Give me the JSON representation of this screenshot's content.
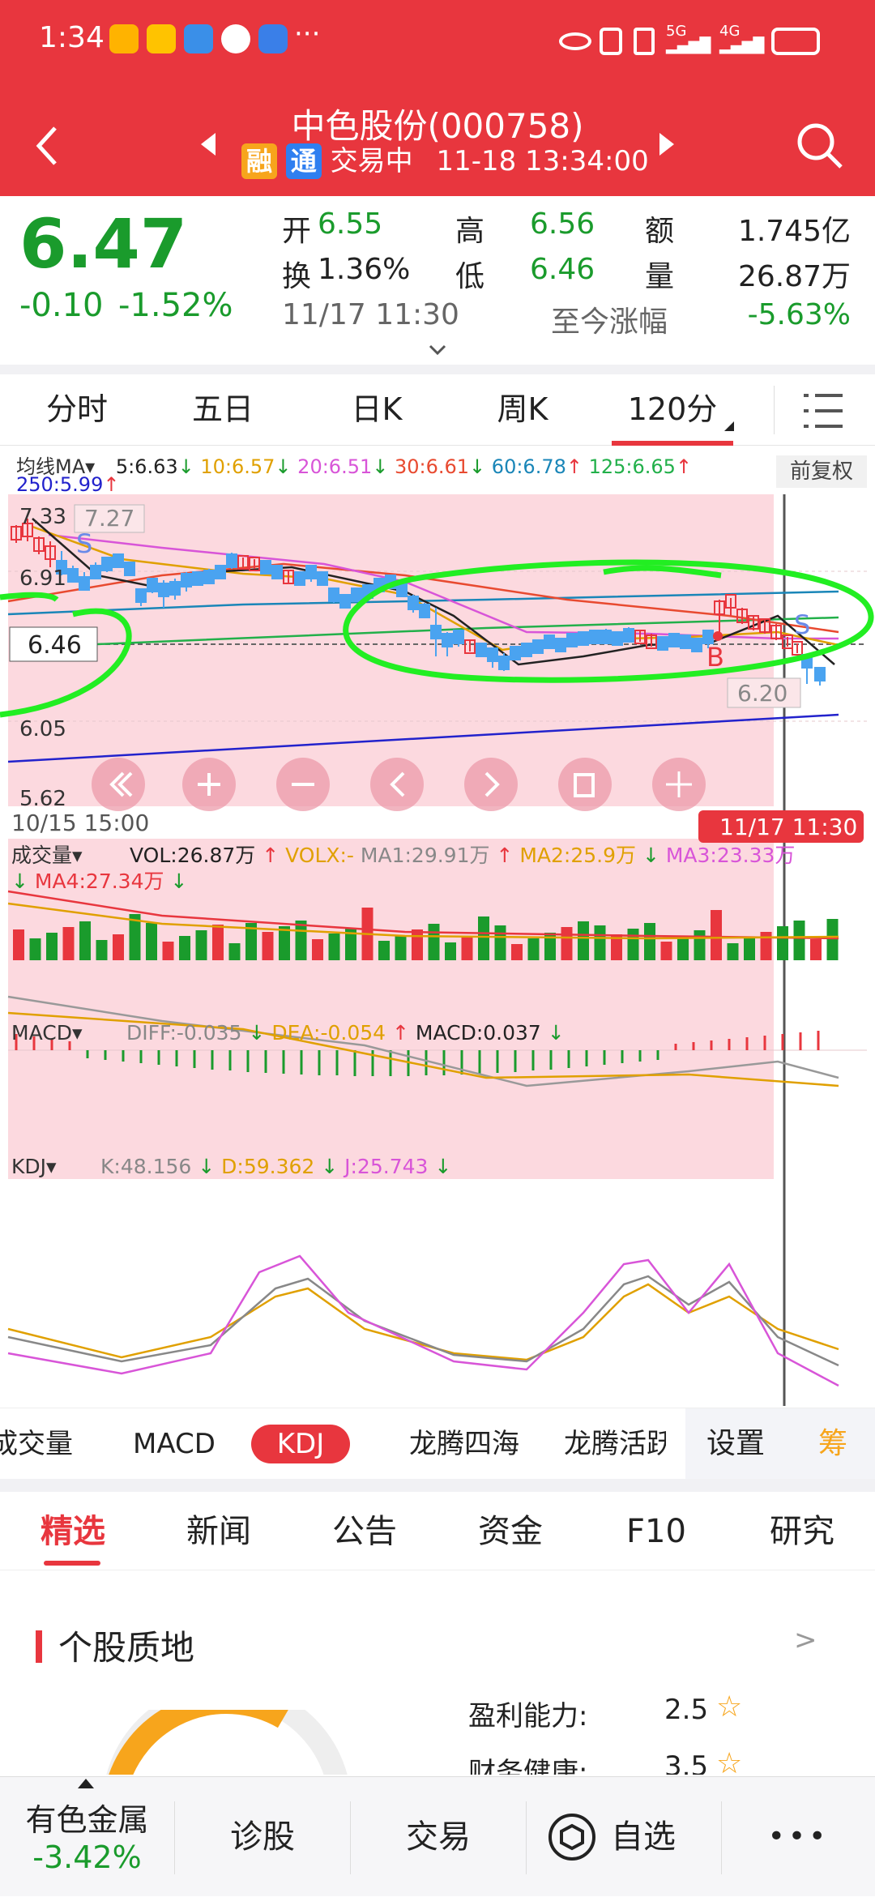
{
  "status_bar": {
    "time": "1:34",
    "more": "···",
    "apps": [
      "weibo",
      "美团",
      "trip",
      "wechat",
      "browser"
    ],
    "network": "5G 4G"
  },
  "header": {
    "stock_name": "中色股份(000758)",
    "badge_rong": "融",
    "badge_tong": "通",
    "trading_status": "交易中",
    "datetime": "11-18 13:34:00"
  },
  "quote": {
    "price": "6.47",
    "change": "-0.10",
    "change_pct": "-1.52%",
    "open_label": "开",
    "open": "6.55",
    "high_label": "高",
    "high": "6.56",
    "amount_label": "额",
    "amount": "1.745亿",
    "turnover_label": "换",
    "turnover": "1.36%",
    "low_label": "低",
    "low": "6.46",
    "volume_label": "量",
    "volume": "26.87万",
    "ref_time": "11/17 11:30",
    "since_label": "至今涨幅",
    "since_value": "-5.63%"
  },
  "period_tabs": [
    {
      "label": "分时"
    },
    {
      "label": "五日"
    },
    {
      "label": "日K"
    },
    {
      "label": "周K"
    },
    {
      "label": "120分"
    }
  ],
  "ma_legend": {
    "title": "均线MA",
    "ma5": "5:6.63",
    "ma10": "10:6.57",
    "ma20": "20:6.51",
    "ma30": "30:6.61",
    "ma60": "60:6.78",
    "ma125": "125:6.65",
    "ma250": "250:5.99",
    "adjust": "前复权"
  },
  "price_axis": {
    "top": "7.33",
    "mid": "6.91",
    "cursor": "6.46",
    "low": "6.05",
    "bottom": "5.62",
    "high_mark": "7.27",
    "low_mark": "6.20"
  },
  "signals": {
    "sell": "S",
    "buy": "B",
    "sell2": "S"
  },
  "time_axis": {
    "start": "10/15 15:00",
    "cursor": "11/17 11:30"
  },
  "volume_legend": {
    "title": "成交量",
    "vol": "VOL:26.87万",
    "volx": "VOLX:-",
    "ma1": "MA1:29.91万",
    "ma2": "MA2:25.9万",
    "ma3": "MA3:23.33万",
    "ma4": "MA4:27.34万"
  },
  "macd_legend": {
    "title": "MACD",
    "diff": "DIFF:-0.035",
    "dea": "DEA:-0.054",
    "macd": "MACD:0.037"
  },
  "kdj_legend": {
    "title": "KDJ",
    "k": "K:48.156",
    "d": "D:59.362",
    "j": "J:25.743"
  },
  "indicator_tabs": [
    {
      "label": "成交量"
    },
    {
      "label": "MACD"
    },
    {
      "label": "KDJ"
    },
    {
      "label": "龙腾四海"
    },
    {
      "label": "龙腾活跃"
    }
  ],
  "indicator_settings": "设置",
  "indicator_chip": "筹",
  "news_tabs": [
    {
      "label": "精选"
    },
    {
      "label": "新闻"
    },
    {
      "label": "公告"
    },
    {
      "label": "资金"
    },
    {
      "label": "F10"
    },
    {
      "label": "研究"
    }
  ],
  "quality": {
    "title": "个股质地",
    "more": ">",
    "profit_label": "盈利能力:",
    "profit_value": "2.5",
    "health_label": "财务健康:",
    "health_value": "3.5"
  },
  "bottom_nav": {
    "sector_name": "有色金属",
    "sector_change": "-3.42%",
    "diagnose": "诊股",
    "trade": "交易",
    "watchlist": "自选",
    "more": "•••"
  },
  "colors": {
    "red": "#e8363e",
    "green": "#1a9b2c",
    "chart_bg": "#fcd9df",
    "annotation": "#22ee22"
  }
}
